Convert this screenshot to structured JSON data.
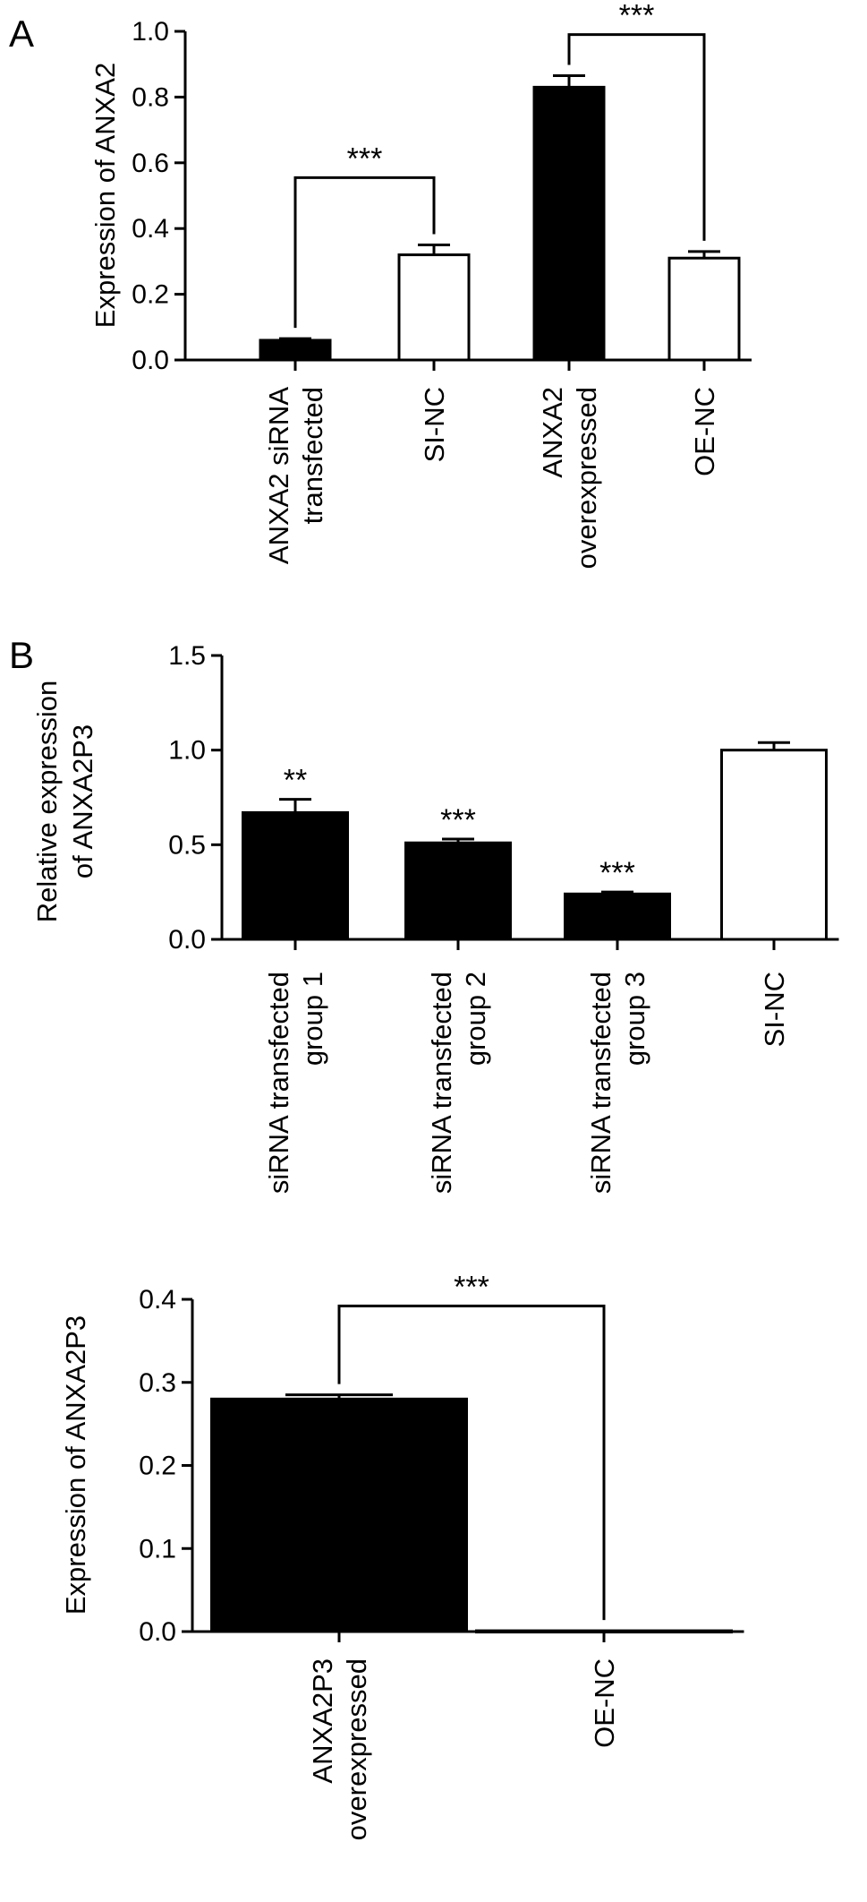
{
  "panel_labels": {
    "a": "A",
    "b": "B"
  },
  "colors": {
    "filled": "#000000",
    "open": "#ffffff",
    "stroke": "#000000"
  },
  "chart_data": [
    {
      "id": "panel-a",
      "type": "bar",
      "ylabel": "Expression of ANXA2",
      "ylim": [
        0,
        1.0
      ],
      "yticks": [
        0.0,
        0.2,
        0.4,
        0.6,
        0.8,
        1.0
      ],
      "ytick_labels": [
        "0.0",
        "0.2",
        "0.4",
        "0.6",
        "0.8",
        "1.0"
      ],
      "categories": [
        [
          "ANXA2 siRNA",
          "transfected"
        ],
        [
          "SI-NC"
        ],
        [
          "ANXA2",
          "overexpressed"
        ],
        [
          "OE-NC"
        ]
      ],
      "values": [
        0.06,
        0.32,
        0.83,
        0.31
      ],
      "errors": [
        0.005,
        0.03,
        0.035,
        0.02
      ],
      "fill": [
        "filled",
        "open",
        "filled",
        "open"
      ],
      "brackets": [
        {
          "from": 0,
          "to": 1,
          "y": 0.555,
          "label": "***"
        },
        {
          "from": 2,
          "to": 3,
          "y": 0.99,
          "label": "***"
        }
      ],
      "bar_labels": []
    },
    {
      "id": "panel-b-top",
      "type": "bar",
      "ylabel": [
        "Relative expression",
        "of ANXA2P3"
      ],
      "ylim": [
        0,
        1.5
      ],
      "yticks": [
        0.0,
        0.5,
        1.0,
        1.5
      ],
      "ytick_labels": [
        "0.0",
        "0.5",
        "1.0",
        "1.5"
      ],
      "categories": [
        [
          "siRNA transfected",
          "group 1"
        ],
        [
          "siRNA transfected",
          "group 2"
        ],
        [
          "siRNA transfected",
          "group 3"
        ],
        [
          "SI-NC"
        ]
      ],
      "values": [
        0.67,
        0.51,
        0.24,
        1.0
      ],
      "errors": [
        0.07,
        0.02,
        0.01,
        0.04
      ],
      "fill": [
        "filled",
        "filled",
        "filled",
        "open"
      ],
      "brackets": [],
      "bar_labels": [
        {
          "index": 0,
          "label": "**"
        },
        {
          "index": 1,
          "label": "***"
        },
        {
          "index": 2,
          "label": "***"
        }
      ]
    },
    {
      "id": "panel-b-bottom",
      "type": "bar",
      "ylabel": "Expression of ANXA2P3",
      "ylim": [
        0,
        0.4
      ],
      "yticks": [
        0.0,
        0.1,
        0.2,
        0.3,
        0.4
      ],
      "ytick_labels": [
        "0.0",
        "0.1",
        "0.2",
        "0.3",
        "0.4"
      ],
      "categories": [
        [
          "ANXA2P3",
          "overexpressed"
        ],
        [
          "OE-NC"
        ]
      ],
      "values": [
        0.28,
        0.001
      ],
      "errors": [
        0.005,
        0.0
      ],
      "fill": [
        "filled",
        "open"
      ],
      "brackets": [
        {
          "from": 0,
          "to": 1,
          "y": 0.392,
          "label": "***"
        }
      ],
      "bar_labels": []
    }
  ]
}
